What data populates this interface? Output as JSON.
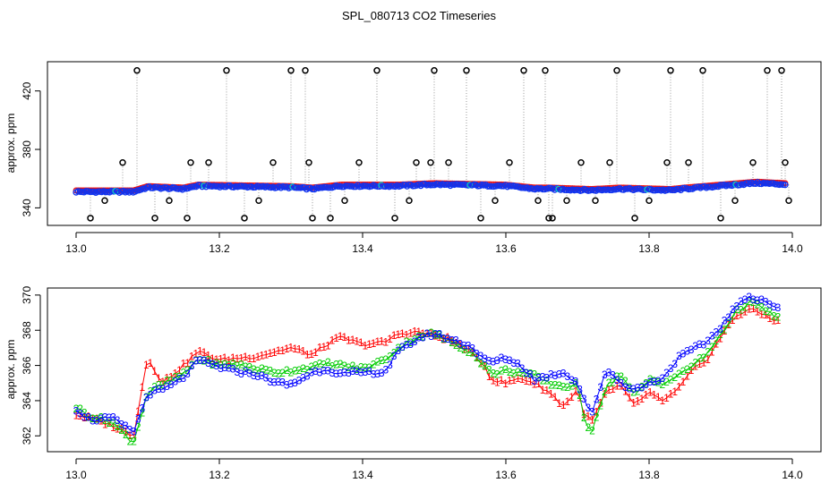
{
  "figure": {
    "title": "SPL_080713  CO2 Timeseries"
  },
  "chart_data": [
    {
      "type": "scatter",
      "name": "top-panel",
      "ylabel": "approx. ppm",
      "xlim": [
        12.96,
        14.04
      ],
      "ylim": [
        328,
        440
      ],
      "xticks": [
        13.0,
        13.2,
        13.4,
        13.6,
        13.8,
        14.0
      ],
      "xtick_labels": [
        "13.0",
        "13.2",
        "13.4",
        "13.6",
        "13.8",
        "14.0"
      ],
      "yticks": [
        340,
        380,
        420
      ],
      "ytick_labels": [
        "340",
        "380",
        "420"
      ],
      "baseline": [
        [
          13.0,
          351
        ],
        [
          13.05,
          351
        ],
        [
          13.08,
          351
        ],
        [
          13.1,
          354
        ],
        [
          13.15,
          353
        ],
        [
          13.17,
          355
        ],
        [
          13.3,
          354
        ],
        [
          13.33,
          353
        ],
        [
          13.37,
          355
        ],
        [
          13.45,
          355
        ],
        [
          13.5,
          356
        ],
        [
          13.6,
          355
        ],
        [
          13.64,
          353
        ],
        [
          13.66,
          353
        ],
        [
          13.72,
          352
        ],
        [
          13.76,
          353
        ],
        [
          13.83,
          352
        ],
        [
          13.85,
          353
        ],
        [
          13.9,
          355
        ],
        [
          13.95,
          357
        ],
        [
          13.99,
          356
        ]
      ],
      "outlier_x": [
        13.02,
        13.04,
        13.065,
        13.085,
        13.11,
        13.13,
        13.155,
        13.16,
        13.185,
        13.21,
        13.235,
        13.255,
        13.275,
        13.3,
        13.32,
        13.325,
        13.33,
        13.355,
        13.375,
        13.395,
        13.42,
        13.445,
        13.465,
        13.475,
        13.495,
        13.5,
        13.52,
        13.545,
        13.565,
        13.585,
        13.605,
        13.625,
        13.645,
        13.655,
        13.66,
        13.665,
        13.685,
        13.705,
        13.725,
        13.745,
        13.755,
        13.78,
        13.8,
        13.825,
        13.83,
        13.855,
        13.875,
        13.9,
        13.92,
        13.945,
        13.965,
        13.985,
        13.99,
        13.995
      ],
      "outlier_y": [
        333,
        345,
        371,
        434,
        333,
        345,
        333,
        371,
        371,
        434,
        333,
        345,
        371,
        434,
        434,
        371,
        333,
        333,
        345,
        371,
        434,
        333,
        345,
        371,
        371,
        434,
        371,
        434,
        333,
        345,
        371,
        434,
        345,
        434,
        333,
        333,
        345,
        371,
        345,
        371,
        434,
        333,
        345,
        371,
        434,
        371,
        434,
        333,
        345,
        371,
        434,
        434,
        371,
        345
      ]
    },
    {
      "type": "line",
      "name": "bottom-panel",
      "ylabel": "approx. ppm",
      "xlim": [
        12.96,
        14.04
      ],
      "ylim": [
        361.1,
        370.4
      ],
      "xticks": [
        13.0,
        13.2,
        13.4,
        13.6,
        13.8,
        14.0
      ],
      "xtick_labels": [
        "13.0",
        "13.2",
        "13.4",
        "13.6",
        "13.8",
        "14.0"
      ],
      "yticks": [
        362,
        364,
        366,
        368,
        370
      ],
      "ytick_labels": [
        "362",
        "364",
        "366",
        "368",
        "370"
      ],
      "series": [
        {
          "name": "1",
          "color": "#ff0000",
          "points": [
            [
              13.0,
              363.2
            ],
            [
              13.02,
              363.0
            ],
            [
              13.05,
              362.6
            ],
            [
              13.08,
              362.0
            ],
            [
              13.1,
              366.5
            ],
            [
              13.12,
              365.0
            ],
            [
              13.15,
              366.0
            ],
            [
              13.17,
              366.8
            ],
            [
              13.2,
              366.3
            ],
            [
              13.22,
              366.4
            ],
            [
              13.25,
              366.5
            ],
            [
              13.28,
              366.8
            ],
            [
              13.3,
              367.0
            ],
            [
              13.33,
              366.6
            ],
            [
              13.35,
              367.2
            ],
            [
              13.37,
              367.6
            ],
            [
              13.4,
              367.2
            ],
            [
              13.43,
              367.3
            ],
            [
              13.45,
              367.8
            ],
            [
              13.48,
              367.9
            ],
            [
              13.5,
              367.7
            ],
            [
              13.52,
              367.5
            ],
            [
              13.55,
              366.8
            ],
            [
              13.57,
              366.0
            ],
            [
              13.58,
              365.2
            ],
            [
              13.6,
              365.0
            ],
            [
              13.62,
              365.3
            ],
            [
              13.64,
              365.0
            ],
            [
              13.66,
              364.5
            ],
            [
              13.68,
              363.7
            ],
            [
              13.7,
              364.6
            ],
            [
              13.71,
              363.2
            ],
            [
              13.72,
              362.8
            ],
            [
              13.74,
              364.5
            ],
            [
              13.76,
              364.8
            ],
            [
              13.78,
              363.8
            ],
            [
              13.8,
              364.4
            ],
            [
              13.82,
              364.0
            ],
            [
              13.84,
              364.6
            ],
            [
              13.86,
              365.7
            ],
            [
              13.88,
              366.3
            ],
            [
              13.9,
              367.6
            ],
            [
              13.92,
              368.8
            ],
            [
              13.94,
              369.2
            ],
            [
              13.96,
              368.9
            ],
            [
              13.98,
              368.5
            ]
          ]
        },
        {
          "name": "2",
          "color": "#00cc00",
          "points": [
            [
              13.0,
              363.6
            ],
            [
              13.02,
              363.1
            ],
            [
              13.05,
              362.8
            ],
            [
              13.08,
              361.6
            ],
            [
              13.1,
              364.5
            ],
            [
              13.12,
              364.9
            ],
            [
              13.15,
              365.5
            ],
            [
              13.17,
              366.4
            ],
            [
              13.2,
              366.0
            ],
            [
              13.22,
              366.1
            ],
            [
              13.25,
              365.8
            ],
            [
              13.28,
              365.6
            ],
            [
              13.3,
              365.7
            ],
            [
              13.33,
              365.9
            ],
            [
              13.35,
              366.1
            ],
            [
              13.37,
              366.0
            ],
            [
              13.4,
              365.8
            ],
            [
              13.43,
              366.3
            ],
            [
              13.45,
              367.0
            ],
            [
              13.48,
              367.7
            ],
            [
              13.5,
              367.8
            ],
            [
              13.52,
              367.4
            ],
            [
              13.55,
              366.8
            ],
            [
              13.57,
              366.0
            ],
            [
              13.58,
              365.5
            ],
            [
              13.6,
              365.7
            ],
            [
              13.62,
              365.6
            ],
            [
              13.64,
              365.4
            ],
            [
              13.66,
              365.0
            ],
            [
              13.68,
              364.8
            ],
            [
              13.7,
              364.9
            ],
            [
              13.71,
              362.8
            ],
            [
              13.72,
              362.3
            ],
            [
              13.74,
              364.8
            ],
            [
              13.76,
              365.5
            ],
            [
              13.78,
              364.3
            ],
            [
              13.8,
              365.2
            ],
            [
              13.82,
              365.0
            ],
            [
              13.84,
              365.4
            ],
            [
              13.86,
              366.0
            ],
            [
              13.88,
              366.6
            ],
            [
              13.9,
              367.8
            ],
            [
              13.92,
              369.0
            ],
            [
              13.94,
              369.6
            ],
            [
              13.96,
              369.2
            ],
            [
              13.98,
              368.7
            ]
          ]
        },
        {
          "name": "3",
          "color": "#0000ff",
          "points": [
            [
              13.0,
              363.5
            ],
            [
              13.02,
              362.9
            ],
            [
              13.05,
              363.0
            ],
            [
              13.08,
              362.2
            ],
            [
              13.1,
              364.4
            ],
            [
              13.12,
              364.6
            ],
            [
              13.15,
              365.3
            ],
            [
              13.17,
              366.3
            ],
            [
              13.2,
              365.9
            ],
            [
              13.22,
              365.7
            ],
            [
              13.25,
              365.5
            ],
            [
              13.28,
              365.0
            ],
            [
              13.3,
              364.9
            ],
            [
              13.33,
              365.6
            ],
            [
              13.35,
              365.8
            ],
            [
              13.37,
              365.5
            ],
            [
              13.4,
              365.6
            ],
            [
              13.43,
              365.6
            ],
            [
              13.45,
              366.8
            ],
            [
              13.48,
              367.6
            ],
            [
              13.5,
              367.8
            ],
            [
              13.52,
              367.5
            ],
            [
              13.55,
              367.1
            ],
            [
              13.57,
              366.3
            ],
            [
              13.58,
              366.2
            ],
            [
              13.6,
              366.4
            ],
            [
              13.62,
              366.0
            ],
            [
              13.64,
              365.2
            ],
            [
              13.66,
              365.4
            ],
            [
              13.68,
              365.6
            ],
            [
              13.7,
              365.0
            ],
            [
              13.71,
              364.0
            ],
            [
              13.72,
              363.2
            ],
            [
              13.74,
              365.8
            ],
            [
              13.76,
              365.0
            ],
            [
              13.78,
              364.6
            ],
            [
              13.8,
              365.0
            ],
            [
              13.82,
              365.3
            ],
            [
              13.84,
              366.4
            ],
            [
              13.86,
              366.9
            ],
            [
              13.88,
              367.3
            ],
            [
              13.9,
              368.2
            ],
            [
              13.92,
              369.3
            ],
            [
              13.94,
              369.9
            ],
            [
              13.96,
              369.7
            ],
            [
              13.98,
              369.2
            ]
          ]
        }
      ]
    }
  ]
}
